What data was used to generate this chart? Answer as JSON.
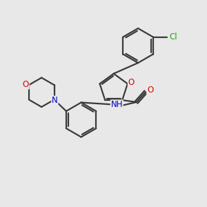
{
  "bg_color": "#e8e8e8",
  "bond_color": "#3a3a3a",
  "bond_width": 1.6,
  "atom_colors": {
    "O": "#dd0000",
    "N": "#0000cc",
    "Cl": "#22aa00",
    "C": "#3a3a3a"
  },
  "font_size": 8.5,
  "fig_size": [
    3.0,
    3.0
  ],
  "dpi": 100
}
